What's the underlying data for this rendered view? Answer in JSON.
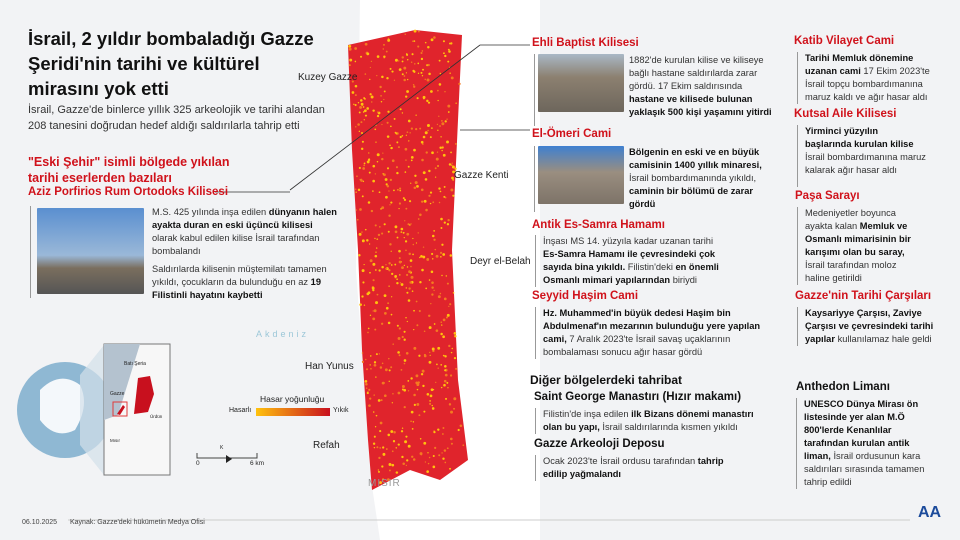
{
  "title": "İsrail, 2 yıldır bombaladığı Gazze Şeridi'nin tarihi ve kültürel mirasını yok etti",
  "intro": "İsrail, Gazze'de binlerce yıllık 325 arkeolojik ve tarihi alandan 208 tanesini doğrudan hedef aldığı saldırılarla tahrip etti",
  "old_city_heading": "\"Eski Şehir\" isimli bölgede yıkılan tarihi eserlerden bazıları",
  "sites": [
    {
      "name": "Aziz Porfirios Rum Ortodoks Kilisesi",
      "p1": [
        "M.S. 425 yılında inşa edilen ",
        "dünyanın halen ayakta duran en eski üçüncü kilisesi",
        " olarak kabul edilen kilise İsrail tarafından bombalandı"
      ],
      "p2": [
        "Saldırılarda kilisenin müştemilatı tamamen yıkıldı, çocukların da bulunduğu en az ",
        "19 Filistinli hayatını kaybetti",
        ""
      ]
    },
    {
      "name": "Ehli Baptist Kilisesi",
      "p1": [
        "1882'de kurulan kilise ve kiliseye bağlı hastane saldırılarda zarar gördü. 17 Ekim saldırısında ",
        "hastane ve kilisede bulunan yaklaşık 500 kişi yaşamını yitirdi",
        ""
      ]
    },
    {
      "name": "El-Ömeri Cami",
      "p1": [
        "",
        "Bölgenin en eski ve en büyük camisinin 1400 yıllık minaresi,",
        " İsrail bombardımanında yıkıldı, ",
        "caminin bir bölümü de zarar gördü"
      ]
    },
    {
      "name": "Antik Es-Samra Hamamı",
      "p1": [
        "İnşası MS 14. yüzyıla kadar uzanan tarihi ",
        "Es-Samra Hamamı ile çevresindeki çok sayıda bina yıkıldı.",
        " Filistin'deki ",
        "en önemli Osmanlı mimari yapılarından",
        " biriydi"
      ]
    },
    {
      "name": "Seyyid Haşim Cami",
      "p1": [
        "",
        "Hz. Muhammed'in büyük dedesi Haşim bin Abdulmenaf'ın mezarının bulunduğu yere yapılan cami,",
        " 7 Aralık 2023'te İsrail savaş uçaklarının bombalaması sonucu ağır hasar gördü"
      ]
    },
    {
      "name": "Katib Vilayet Cami",
      "p1": [
        "",
        "Tarihi Memluk dönemine uzanan cami",
        " 17 Ekim 2023'te İsrail topçu bombardımanına maruz kaldı ve ağır hasar aldı"
      ]
    },
    {
      "name": "Kutsal Aile Kilisesi",
      "p1": [
        "",
        "Yirminci yüzyılın başlarında kurulan kilise",
        " İsrail bombardımanına maruz kalarak ağır hasar aldı"
      ]
    },
    {
      "name": "Paşa Sarayı",
      "p1": [
        "Medeniyetler boyunca ayakta kalan ",
        "Memluk ve Osmanlı mimarisinin bir karışımı olan bu saray,",
        " İsrail tarafından moloz haline getirildi"
      ]
    },
    {
      "name": "Gazze'nin Tarihi Çarşıları",
      "p1": [
        "",
        "Kaysariyye Çarşısı, Zaviye Çarşısı ve çevresindeki tarihi yapılar",
        " kullanılamaz hale geldi"
      ]
    }
  ],
  "other_heading": "Diğer bölgelerdeki tahribat",
  "other": [
    {
      "name": "Saint George Manastırı (Hızır makamı)",
      "p1": [
        "Filistin'de inşa edilen ",
        "ilk Bizans dönemi manastırı olan bu yapı,",
        " İsrail saldırılarında kısmen yıkıldı"
      ]
    },
    {
      "name": "Gazze Arkeoloji Deposu",
      "p1": [
        "Ocak 2023'te İsrail ordusu tarafından ",
        "tahrip edilip yağmalandı",
        ""
      ]
    },
    {
      "name": "Anthedon Limanı",
      "p1": [
        "",
        "UNESCO Dünya Mirası ön listesinde yer alan M.Ö 800'lerde Kenanlılar tarafından kurulan antik liman,",
        " İsrail ordusunun kara saldırıları sırasında tamamen tahrip edildi"
      ]
    }
  ],
  "map": {
    "labels": [
      "Kuzey Gazze",
      "Gazze Kenti",
      "Deyr el-Belah",
      "Han Yunus",
      "Refah",
      "MISIR",
      "Akdeniz"
    ],
    "legend": {
      "title": "Hasar yoğunluğu",
      "low": "Hasarlı",
      "high": "Yıkık",
      "colors": [
        "#ffc20e",
        "#c8101e"
      ]
    },
    "scale": {
      "zero": "0",
      "max": "6 km"
    },
    "north": "K",
    "inset": {
      "labels": [
        "Batı Şeria",
        "Gazze",
        "Ürdün",
        "Mısır"
      ]
    }
  },
  "footer": {
    "date": "06.10.2025",
    "source": "Kaynak: Gazze'deki hükümetin Medya Ofisi",
    "logo": "AA"
  },
  "colors": {
    "accent": "#d0121b",
    "logo": "#1c4b9b"
  }
}
